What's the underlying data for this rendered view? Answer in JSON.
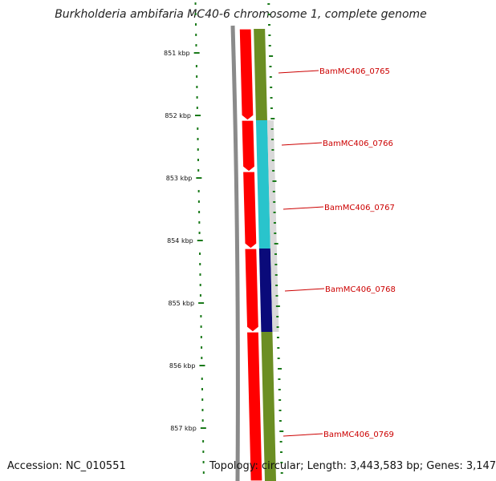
{
  "title": "Burkholderia ambifaria MC40-6 chromosome 1, complete genome",
  "accession": "Accession: NC_010551",
  "stats": "Topology: circular; Length: 3,443,583 bp; Genes: 3,147",
  "ruler": {
    "labels": [
      "851 kbp",
      "852 kbp",
      "853 kbp",
      "854 kbp",
      "855 kbp",
      "856 kbp",
      "857 kbp"
    ]
  },
  "genes": [
    {
      "name": "BamMC406_0765",
      "color": "#6b8e23"
    },
    {
      "name": "BamMC406_0766",
      "color": "#29c4cc"
    },
    {
      "name": "BamMC406_0767",
      "color": "#29c4cc"
    },
    {
      "name": "BamMC406_0768",
      "color": "#0a0a7a"
    },
    {
      "name": "BamMC406_0769",
      "color": "#6b8e23"
    }
  ],
  "colors": {
    "backbone": "#8a8a8a",
    "reverse_strand": "#ff0000",
    "ruler": "#1a7a1a",
    "gene_label": "#cc0000"
  }
}
